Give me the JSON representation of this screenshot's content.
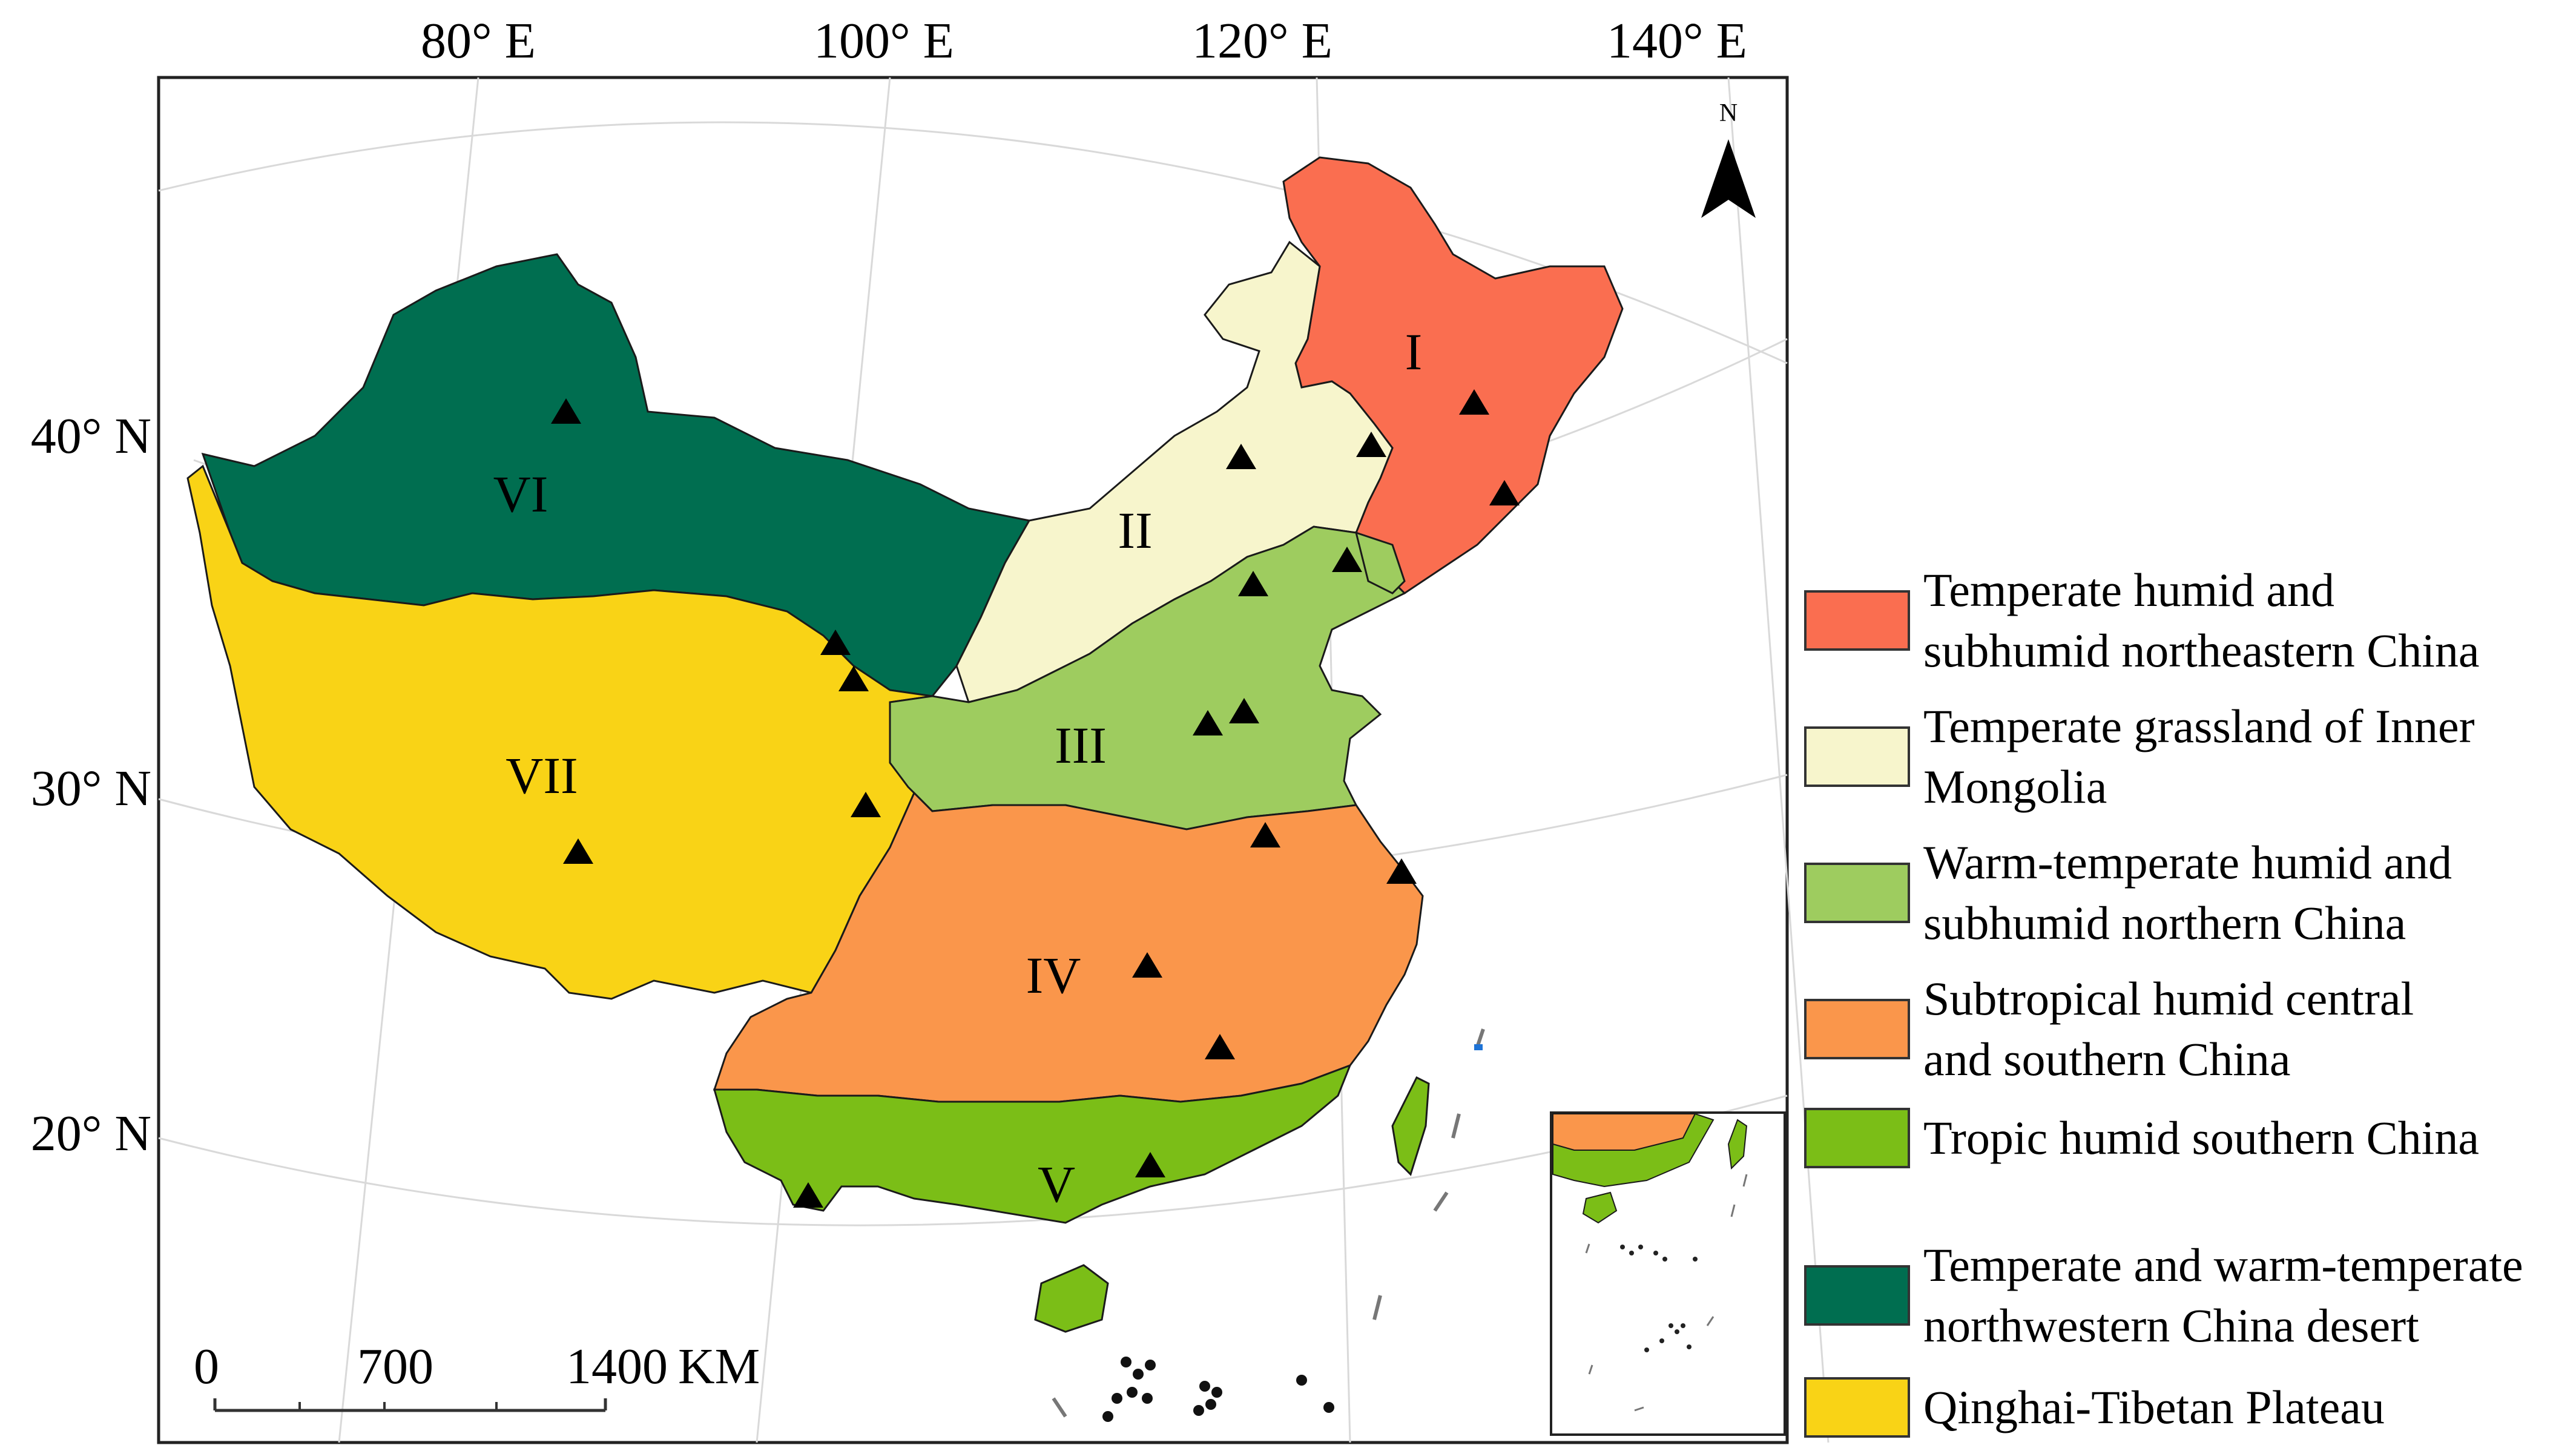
{
  "lon_labels": [
    "80° E",
    "100° E",
    "120° E",
    "140° E"
  ],
  "lat_labels": [
    "40° N",
    "30° N",
    "20° N"
  ],
  "north_label": "N",
  "regions": [
    {
      "id": "I",
      "name": "Temperate humid and subhumid northeastern China",
      "color": "#FA6E50"
    },
    {
      "id": "II",
      "name": "Temperate grassland of Inner Mongolia",
      "color": "#F7F5CC"
    },
    {
      "id": "III",
      "name": "Warm-temperate humid and subhumid northern China",
      "color": "#9ECC5F"
    },
    {
      "id": "IV",
      "name": "Subtropical humid central and southern China",
      "color": "#FA964B"
    },
    {
      "id": "V",
      "name": "Tropic humid southern China",
      "color": "#7BBE17"
    },
    {
      "id": "VI",
      "name": "Temperate and warm-temperate northwestern China desert",
      "color": "#006E50"
    },
    {
      "id": "VII",
      "name": "Qinghai-Tibetan Plateau",
      "color": "#F9D316"
    }
  ],
  "legend": [
    {
      "text": "Temperate humid and\nsubhumid northeastern China",
      "color": "#FA6E50"
    },
    {
      "text": "Temperate grassland of Inner\nMongolia",
      "color": "#F7F5CC"
    },
    {
      "text": "Warm-temperate humid and\nsubhumid northern China",
      "color": "#9ECC5F"
    },
    {
      "text": "Subtropical humid central\nand southern China",
      "color": "#FA964B"
    },
    {
      "text": "Tropic humid southern China",
      "color": "#7BBE17"
    },
    {
      "text": "Temperate and warm-temperate\nnorthwestern China desert",
      "color": "#006E50"
    },
    {
      "text": "Qinghai-Tibetan Plateau",
      "color": "#F9D316"
    }
  ],
  "scale_bar": {
    "ticks": [
      "0",
      "700",
      "1400"
    ],
    "unit": "KM"
  }
}
